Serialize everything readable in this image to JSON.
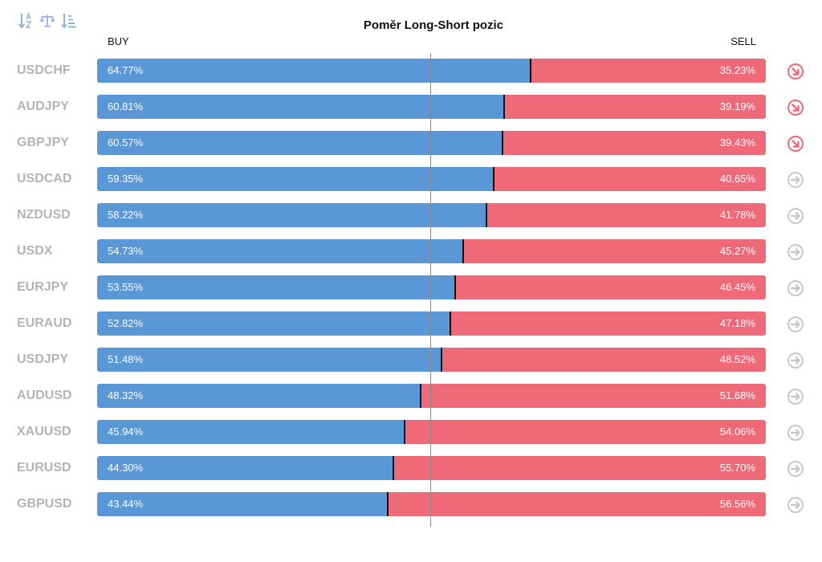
{
  "toolbar": {
    "icons": [
      "sort-alpha-icon",
      "balance-scale-icon",
      "sort-list-icon"
    ]
  },
  "colors": {
    "buy": "#5a97d6",
    "sell": "#ef6a78",
    "trend_down": "#ef6a78",
    "trend_neutral": "#c4c9cf"
  },
  "chart_data": {
    "type": "bar",
    "title": "Poměr Long-Short pozic",
    "buy_label": "BUY",
    "sell_label": "SELL",
    "rows": [
      {
        "symbol": "USDCHF",
        "buy": 64.77,
        "sell": 35.23,
        "buy_text": "64.77%",
        "sell_text": "35.23%",
        "trend": "down"
      },
      {
        "symbol": "AUDJPY",
        "buy": 60.81,
        "sell": 39.19,
        "buy_text": "60.81%",
        "sell_text": "39.19%",
        "trend": "down"
      },
      {
        "symbol": "GBPJPY",
        "buy": 60.57,
        "sell": 39.43,
        "buy_text": "60.57%",
        "sell_text": "39.43%",
        "trend": "down"
      },
      {
        "symbol": "USDCAD",
        "buy": 59.35,
        "sell": 40.65,
        "buy_text": "59.35%",
        "sell_text": "40.65%",
        "trend": "neutral"
      },
      {
        "symbol": "NZDUSD",
        "buy": 58.22,
        "sell": 41.78,
        "buy_text": "58.22%",
        "sell_text": "41.78%",
        "trend": "neutral"
      },
      {
        "symbol": "USDX",
        "buy": 54.73,
        "sell": 45.27,
        "buy_text": "54.73%",
        "sell_text": "45.27%",
        "trend": "neutral"
      },
      {
        "symbol": "EURJPY",
        "buy": 53.55,
        "sell": 46.45,
        "buy_text": "53.55%",
        "sell_text": "46.45%",
        "trend": "neutral"
      },
      {
        "symbol": "EURAUD",
        "buy": 52.82,
        "sell": 47.18,
        "buy_text": "52.82%",
        "sell_text": "47.18%",
        "trend": "neutral"
      },
      {
        "symbol": "USDJPY",
        "buy": 51.48,
        "sell": 48.52,
        "buy_text": "51.48%",
        "sell_text": "48.52%",
        "trend": "neutral"
      },
      {
        "symbol": "AUDUSD",
        "buy": 48.32,
        "sell": 51.68,
        "buy_text": "48.32%",
        "sell_text": "51.68%",
        "trend": "neutral"
      },
      {
        "symbol": "XAUUSD",
        "buy": 45.94,
        "sell": 54.06,
        "buy_text": "45.94%",
        "sell_text": "54.06%",
        "trend": "neutral"
      },
      {
        "symbol": "EURUSD",
        "buy": 44.3,
        "sell": 55.7,
        "buy_text": "44.30%",
        "sell_text": "55.70%",
        "trend": "neutral"
      },
      {
        "symbol": "GBPUSD",
        "buy": 43.44,
        "sell": 56.56,
        "buy_text": "43.44%",
        "sell_text": "56.56%",
        "trend": "neutral"
      }
    ]
  }
}
